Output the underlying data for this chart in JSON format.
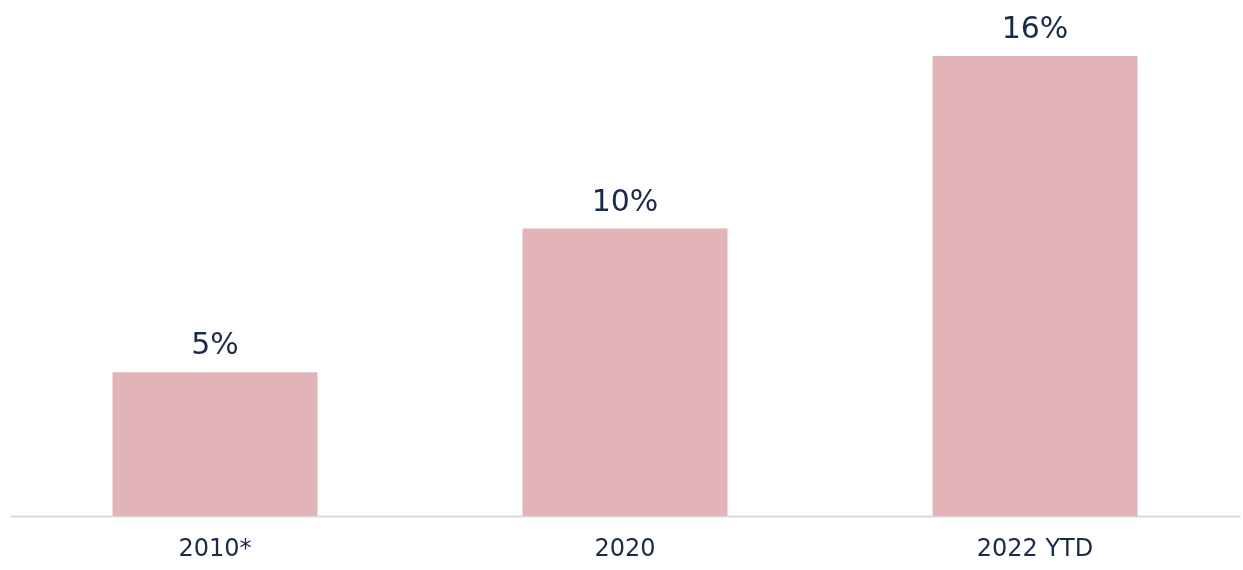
{
  "chart_data": {
    "type": "bar",
    "categories": [
      "2010*",
      "2020",
      "2022 YTD"
    ],
    "values": [
      5,
      10,
      16
    ],
    "color": "#e2b4ba",
    "value_labels": [
      "5%",
      "10%",
      "16%"
    ],
    "grid": false
  }
}
